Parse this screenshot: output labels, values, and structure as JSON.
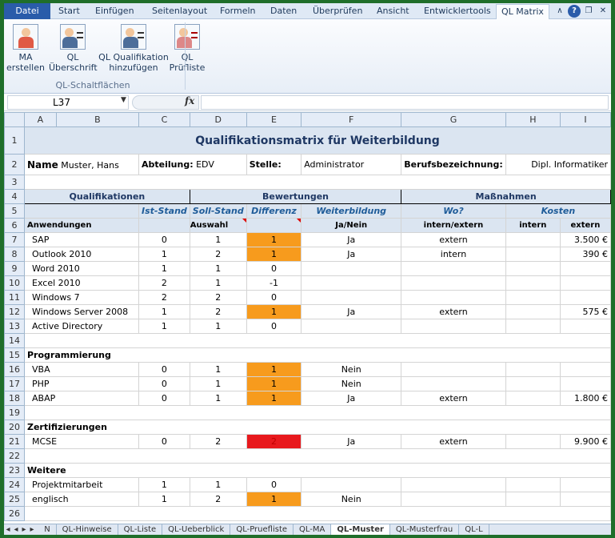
{
  "ribbon": {
    "tabs": [
      "Datei",
      "Start",
      "Einfügen",
      "Seitenlayout",
      "Formeln",
      "Daten",
      "Überprüfen",
      "Ansicht",
      "Entwicklertools",
      "QL Matrix"
    ],
    "active_tab": "QL Matrix",
    "buttons": [
      {
        "line1": "MA",
        "line2": "erstellen",
        "icon": "person-red-icon"
      },
      {
        "line1": "QL",
        "line2": "Überschrift",
        "icon": "person-list-icon"
      },
      {
        "line1": "QL Qualifikation",
        "line2": "hinzufügen",
        "icon": "person-add-icon"
      },
      {
        "line1": "QL",
        "line2": "Prüfliste",
        "icon": "checklist-icon"
      }
    ],
    "group_label": "QL-Schaltflächen"
  },
  "formula_bar": {
    "cell_ref": "L37",
    "fx": "fx",
    "value": ""
  },
  "columns": [
    "A",
    "B",
    "C",
    "D",
    "E",
    "F",
    "G",
    "H",
    "I"
  ],
  "sheet": {
    "title": "Qualifikationsmatrix für Weiterbildung",
    "name_label": "Name",
    "name_value": "Muster, Hans",
    "abteilung_label": "Abteilung:",
    "abteilung_value": "EDV",
    "stelle_label": "Stelle:",
    "stelle_value": "Administrator",
    "beruf_label": "Berufsbezeichnung:",
    "beruf_value": "Dipl. Informatiker",
    "h4_qual": "Qualifikationen",
    "h4_bew": "Bewertungen",
    "h4_mass": "Maßnahmen",
    "h5_ist": "Ist-Stand",
    "h5_soll": "Soll-Stand",
    "h5_diff": "Differenz",
    "h5_wb": "Weiterbildung",
    "h5_wo": "Wo?",
    "h5_kosten": "Kosten",
    "h6_anw": "Anwendungen",
    "h6_auswahl": "Auswahl",
    "h6_janein": "Ja/Nein",
    "h6_intext": "intern/extern",
    "h6_intern": "intern",
    "h6_extern": "extern",
    "sec_prog": "Programmierung",
    "sec_zert": "Zertifizierungen",
    "sec_weit": "Weitere",
    "rows": [
      {
        "n": "7",
        "name": "SAP",
        "ist": "0",
        "soll": "1",
        "diff": "1",
        "color": "orange",
        "jn": "Ja",
        "wo": "extern",
        "ext": "3.500 €"
      },
      {
        "n": "8",
        "name": "Outlook 2010",
        "ist": "1",
        "soll": "2",
        "diff": "1",
        "color": "orange",
        "jn": "Ja",
        "wo": "intern",
        "ext": "390 €"
      },
      {
        "n": "9",
        "name": "Word 2010",
        "ist": "1",
        "soll": "1",
        "diff": "0",
        "color": "",
        "jn": "",
        "wo": "",
        "ext": ""
      },
      {
        "n": "10",
        "name": "Excel 2010",
        "ist": "2",
        "soll": "1",
        "diff": "-1",
        "color": "",
        "jn": "",
        "wo": "",
        "ext": ""
      },
      {
        "n": "11",
        "name": "Windows 7",
        "ist": "2",
        "soll": "2",
        "diff": "0",
        "color": "",
        "jn": "",
        "wo": "",
        "ext": ""
      },
      {
        "n": "12",
        "name": "Windows Server 2008",
        "ist": "1",
        "soll": "2",
        "diff": "1",
        "color": "orange",
        "jn": "Ja",
        "wo": "extern",
        "ext": "575 €"
      },
      {
        "n": "13",
        "name": "Active Directory",
        "ist": "1",
        "soll": "1",
        "diff": "0",
        "color": "",
        "jn": "",
        "wo": "",
        "ext": ""
      },
      {
        "n": "16",
        "name": "VBA",
        "ist": "0",
        "soll": "1",
        "diff": "1",
        "color": "orange",
        "jn": "Nein",
        "wo": "",
        "ext": ""
      },
      {
        "n": "17",
        "name": "PHP",
        "ist": "0",
        "soll": "1",
        "diff": "1",
        "color": "orange",
        "jn": "Nein",
        "wo": "",
        "ext": ""
      },
      {
        "n": "18",
        "name": "ABAP",
        "ist": "0",
        "soll": "1",
        "diff": "1",
        "color": "orange",
        "jn": "Ja",
        "wo": "extern",
        "ext": "1.800 €"
      },
      {
        "n": "21",
        "name": "MCSE",
        "ist": "0",
        "soll": "2",
        "diff": "2",
        "color": "red",
        "jn": "Ja",
        "wo": "extern",
        "ext": "9.900 €"
      },
      {
        "n": "24",
        "name": "Projektmitarbeit",
        "ist": "1",
        "soll": "1",
        "diff": "0",
        "color": "",
        "jn": "",
        "wo": "",
        "ext": ""
      },
      {
        "n": "25",
        "name": "englisch",
        "ist": "1",
        "soll": "2",
        "diff": "1",
        "color": "orange",
        "jn": "Nein",
        "wo": "",
        "ext": ""
      }
    ]
  },
  "sheet_tabs": [
    "N",
    "QL-Hinweise",
    "QL-Liste",
    "QL-Ueberblick",
    "QL-Pruefliste",
    "QL-MA",
    "QL-Muster",
    "QL-Musterfrau",
    "QL-L"
  ],
  "active_sheet": "QL-Muster",
  "colors": {
    "orange": "#f79b1d",
    "red": "#e8191d",
    "header_fill": "#dbe5f1",
    "title": "#1f3864",
    "frame": "#1f6e2a"
  }
}
